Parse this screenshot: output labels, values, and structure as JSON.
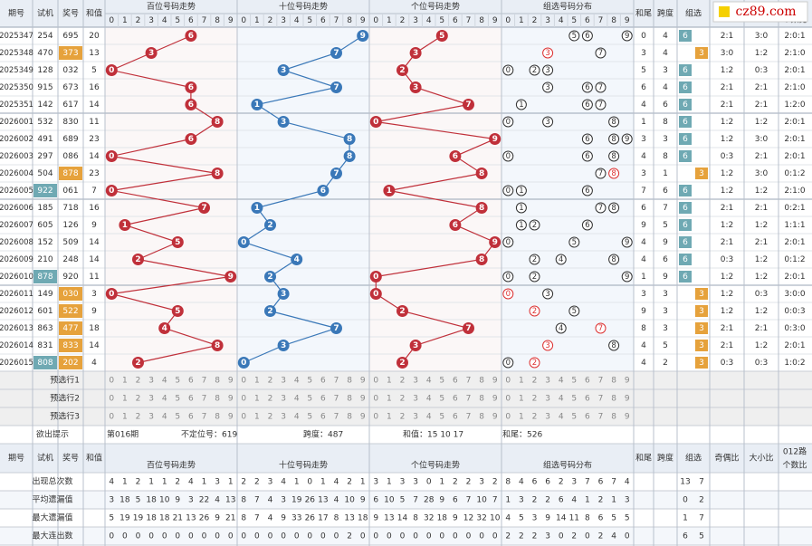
{
  "header": {
    "period": "期号",
    "test": "试机",
    "prize": "奖号",
    "sum": "和值",
    "hundreds": "百位号码走势",
    "tens": "十位号码走势",
    "units": "个位号码走势",
    "group_dist": "组选号码分布",
    "sum_tail": "和尾",
    "span": "跨度",
    "group": "组选",
    "odd_even": "奇偶比",
    "big_small": "大小比",
    "road": "012路",
    "road_sub": "个数比"
  },
  "logo": "cz89.com",
  "digits": [
    "0",
    "1",
    "2",
    "3",
    "4",
    "5",
    "6",
    "7",
    "8",
    "9"
  ],
  "draws": [
    {
      "period": "2025347",
      "test": "254",
      "prize": "695",
      "sum": 20,
      "sum_tail": 0,
      "span": 4,
      "group": 6,
      "odd_even": "2:1",
      "big_small": "3:0",
      "road": "2:0:1"
    },
    {
      "period": "2025348",
      "test": "470",
      "prize": "373",
      "sum": 13,
      "sum_tail": 3,
      "span": 4,
      "group": 3,
      "odd_even": "3:0",
      "big_small": "1:2",
      "road": "2:1:0"
    },
    {
      "period": "2025349",
      "test": "128",
      "prize": "032",
      "sum": 5,
      "sum_tail": 5,
      "span": 3,
      "group": 6,
      "odd_even": "1:2",
      "big_small": "0:3",
      "road": "2:0:1"
    },
    {
      "period": "2025350",
      "test": "915",
      "prize": "673",
      "sum": 16,
      "sum_tail": 6,
      "span": 4,
      "group": 6,
      "odd_even": "2:1",
      "big_small": "2:1",
      "road": "2:1:0"
    },
    {
      "period": "2025351",
      "test": "142",
      "prize": "617",
      "sum": 14,
      "sum_tail": 4,
      "span": 6,
      "group": 6,
      "odd_even": "2:1",
      "big_small": "2:1",
      "road": "1:2:0"
    },
    {
      "period": "2026001",
      "test": "532",
      "prize": "830",
      "sum": 11,
      "sum_tail": 1,
      "span": 8,
      "group": 6,
      "odd_even": "1:2",
      "big_small": "1:2",
      "road": "2:0:1"
    },
    {
      "period": "2026002",
      "test": "491",
      "prize": "689",
      "sum": 23,
      "sum_tail": 3,
      "span": 3,
      "group": 6,
      "odd_even": "1:2",
      "big_small": "3:0",
      "road": "2:0:1"
    },
    {
      "period": "2026003",
      "test": "297",
      "prize": "086",
      "sum": 14,
      "sum_tail": 4,
      "span": 8,
      "group": 6,
      "odd_even": "0:3",
      "big_small": "2:1",
      "road": "2:0:1"
    },
    {
      "period": "2026004",
      "test": "504",
      "prize": "878",
      "sum": 23,
      "sum_tail": 3,
      "span": 1,
      "group": 3,
      "odd_even": "1:2",
      "big_small": "3:0",
      "road": "0:1:2"
    },
    {
      "period": "2026005",
      "test": "922",
      "prize": "061",
      "sum": 7,
      "sum_tail": 7,
      "span": 6,
      "group": 6,
      "odd_even": "1:2",
      "big_small": "1:2",
      "road": "2:1:0"
    },
    {
      "period": "2026006",
      "test": "185",
      "prize": "718",
      "sum": 16,
      "sum_tail": 6,
      "span": 7,
      "group": 6,
      "odd_even": "2:1",
      "big_small": "2:1",
      "road": "0:2:1"
    },
    {
      "period": "2026007",
      "test": "605",
      "prize": "126",
      "sum": 9,
      "sum_tail": 9,
      "span": 5,
      "group": 6,
      "odd_even": "1:2",
      "big_small": "1:2",
      "road": "1:1:1"
    },
    {
      "period": "2026008",
      "test": "152",
      "prize": "509",
      "sum": 14,
      "sum_tail": 4,
      "span": 9,
      "group": 6,
      "odd_even": "2:1",
      "big_small": "2:1",
      "road": "2:0:1"
    },
    {
      "period": "2026009",
      "test": "210",
      "prize": "248",
      "sum": 14,
      "sum_tail": 4,
      "span": 6,
      "group": 6,
      "odd_even": "0:3",
      "big_small": "1:2",
      "road": "0:1:2"
    },
    {
      "period": "2026010",
      "test": "878",
      "prize": "920",
      "sum": 11,
      "sum_tail": 1,
      "span": 9,
      "group": 6,
      "odd_even": "1:2",
      "big_small": "1:2",
      "road": "2:0:1"
    },
    {
      "period": "2026011",
      "test": "149",
      "prize": "030",
      "sum": 3,
      "sum_tail": 3,
      "span": 3,
      "group": 3,
      "odd_even": "1:2",
      "big_small": "0:3",
      "road": "3:0:0"
    },
    {
      "period": "2026012",
      "test": "601",
      "prize": "522",
      "sum": 9,
      "sum_tail": 9,
      "span": 3,
      "group": 3,
      "odd_even": "1:2",
      "big_small": "1:2",
      "road": "0:0:3"
    },
    {
      "period": "2026013",
      "test": "863",
      "prize": "477",
      "sum": 18,
      "sum_tail": 8,
      "span": 3,
      "group": 3,
      "odd_even": "2:1",
      "big_small": "2:1",
      "road": "0:3:0"
    },
    {
      "period": "2026014",
      "test": "831",
      "prize": "833",
      "sum": 14,
      "sum_tail": 4,
      "span": 5,
      "group": 3,
      "odd_even": "2:1",
      "big_small": "1:2",
      "road": "2:0:1"
    },
    {
      "period": "2026015",
      "test": "808",
      "prize": "202",
      "sum": 4,
      "sum_tail": 4,
      "span": 2,
      "group": 3,
      "odd_even": "0:3",
      "big_small": "0:3",
      "road": "1:0:2"
    }
  ],
  "preselect": [
    "预选行1",
    "预选行2",
    "预选行3"
  ],
  "hint": {
    "label": "欲出提示",
    "issue": "第016期",
    "fixed": "不定位号：619",
    "span": "跨度：487",
    "sum": "和值：15 10 17",
    "tail": "和尾：526"
  },
  "stats": [
    {
      "label": "出现总次数",
      "values": [
        4,
        1,
        2,
        1,
        1,
        2,
        4,
        1,
        3,
        1,
        2,
        2,
        3,
        4,
        1,
        0,
        1,
        4,
        2,
        1,
        3,
        1,
        3,
        3,
        0,
        1,
        2,
        2,
        3,
        2,
        8,
        4,
        6,
        6,
        2,
        3,
        7,
        6,
        7,
        4
      ],
      "group": [
        13,
        7
      ]
    },
    {
      "label": "平均遗漏值",
      "values": [
        3,
        18,
        5,
        18,
        10,
        9,
        3,
        22,
        4,
        13,
        8,
        7,
        4,
        3,
        19,
        26,
        13,
        4,
        10,
        9,
        6,
        10,
        5,
        7,
        28,
        9,
        6,
        7,
        10,
        7,
        1,
        3,
        2,
        2,
        6,
        4,
        1,
        2,
        1,
        3
      ],
      "group": [
        0,
        2
      ]
    },
    {
      "label": "最大遗漏值",
      "values": [
        5,
        19,
        19,
        18,
        18,
        21,
        13,
        26,
        9,
        21,
        8,
        7,
        4,
        9,
        33,
        26,
        17,
        8,
        13,
        18,
        9,
        13,
        14,
        8,
        32,
        18,
        9,
        12,
        32,
        10,
        4,
        5,
        3,
        9,
        14,
        11,
        8,
        6,
        5,
        5
      ],
      "group": [
        1,
        7
      ]
    },
    {
      "label": "最大连出数",
      "values": [
        0,
        0,
        0,
        0,
        0,
        0,
        0,
        0,
        0,
        0,
        0,
        0,
        0,
        0,
        0,
        0,
        0,
        0,
        2,
        0,
        0,
        0,
        0,
        0,
        0,
        0,
        0,
        0,
        0,
        0,
        2,
        2,
        2,
        3,
        0,
        2,
        0,
        2,
        4,
        0
      ],
      "group": [
        6,
        5
      ]
    }
  ]
}
